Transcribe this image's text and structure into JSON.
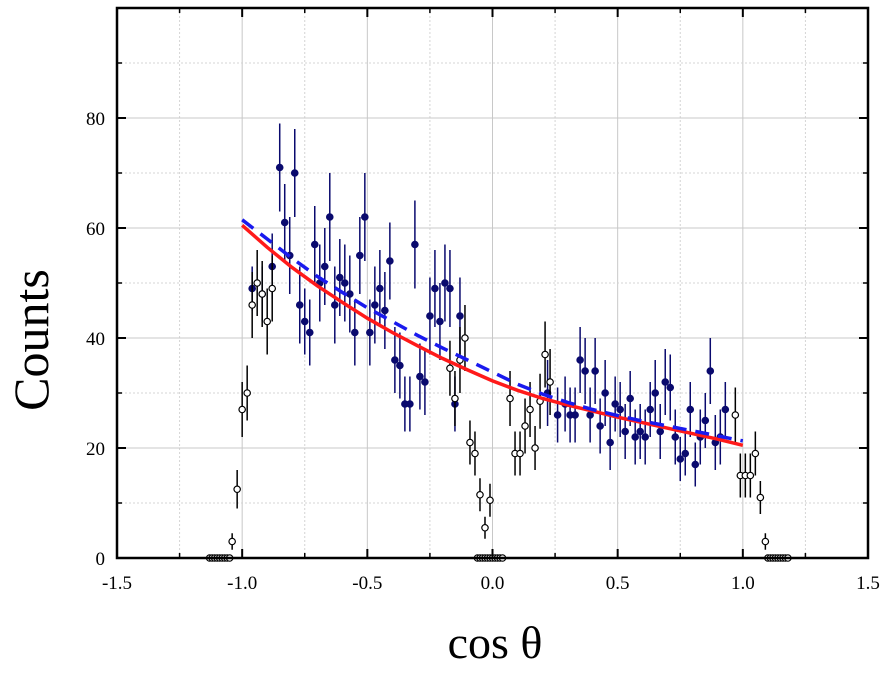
{
  "chart_data": {
    "type": "scatter",
    "title": "",
    "xlabel": "cos θ",
    "ylabel": "Counts",
    "xlim": [
      -1.5,
      1.5
    ],
    "ylim": [
      0,
      80
    ],
    "x_ticks": [
      "-1.5",
      "-1.0",
      "-0.5",
      "0.0",
      "0.5",
      "1.0",
      "1.5"
    ],
    "y_ticks": [
      "0",
      "20",
      "40",
      "60",
      "80"
    ],
    "grid": true,
    "legend": "none",
    "colors": {
      "filled_points": "#0a0a6e",
      "open_points": "#000000",
      "fit_solid": "#ff1a1a",
      "fit_dashed": "#1a1aee"
    },
    "series": [
      {
        "marker": "filled-circle",
        "points": [
          [
            -0.96,
            49,
            4
          ],
          [
            -0.92,
            48,
            5
          ],
          [
            -0.88,
            53,
            6
          ],
          [
            -0.85,
            71,
            8
          ],
          [
            -0.83,
            61,
            7
          ],
          [
            -0.81,
            55,
            7
          ],
          [
            -0.79,
            70,
            8
          ],
          [
            -0.77,
            46,
            7
          ],
          [
            -0.75,
            43,
            6
          ],
          [
            -0.73,
            41,
            6
          ],
          [
            -0.71,
            57,
            7
          ],
          [
            -0.69,
            50,
            7
          ],
          [
            -0.67,
            53,
            7
          ],
          [
            -0.65,
            62,
            8
          ],
          [
            -0.63,
            46,
            7
          ],
          [
            -0.61,
            51,
            7
          ],
          [
            -0.59,
            50,
            7
          ],
          [
            -0.57,
            48,
            7
          ],
          [
            -0.55,
            41,
            6
          ],
          [
            -0.53,
            55,
            7
          ],
          [
            -0.51,
            62,
            8
          ],
          [
            -0.49,
            41,
            6
          ],
          [
            -0.47,
            46,
            7
          ],
          [
            -0.45,
            49,
            7
          ],
          [
            -0.43,
            45,
            7
          ],
          [
            -0.41,
            54,
            7
          ],
          [
            -0.39,
            36,
            6
          ],
          [
            -0.37,
            35,
            6
          ],
          [
            -0.35,
            28,
            5
          ],
          [
            -0.33,
            28,
            5
          ],
          [
            -0.31,
            57,
            8
          ],
          [
            -0.29,
            33,
            6
          ],
          [
            -0.27,
            32,
            6
          ],
          [
            -0.25,
            44,
            7
          ],
          [
            -0.23,
            49,
            7
          ],
          [
            -0.21,
            43,
            7
          ],
          [
            -0.19,
            50,
            7
          ],
          [
            -0.17,
            49,
            7
          ],
          [
            -0.15,
            28,
            5
          ],
          [
            -0.13,
            44,
            7
          ],
          [
            0.22,
            30,
            6
          ],
          [
            0.26,
            26,
            5
          ],
          [
            0.29,
            28,
            5
          ],
          [
            0.31,
            26,
            5
          ],
          [
            0.33,
            26,
            5
          ],
          [
            0.35,
            36,
            6
          ],
          [
            0.37,
            34,
            6
          ],
          [
            0.39,
            26,
            5
          ],
          [
            0.41,
            34,
            6
          ],
          [
            0.43,
            24,
            5
          ],
          [
            0.45,
            30,
            6
          ],
          [
            0.47,
            21,
            5
          ],
          [
            0.49,
            28,
            5
          ],
          [
            0.51,
            27,
            5
          ],
          [
            0.53,
            23,
            5
          ],
          [
            0.55,
            29,
            5
          ],
          [
            0.57,
            22,
            5
          ],
          [
            0.59,
            23,
            5
          ],
          [
            0.61,
            22,
            5
          ],
          [
            0.63,
            27,
            5
          ],
          [
            0.65,
            30,
            6
          ],
          [
            0.67,
            23,
            5
          ],
          [
            0.69,
            32,
            6
          ],
          [
            0.71,
            31,
            6
          ],
          [
            0.73,
            22,
            5
          ],
          [
            0.75,
            18,
            4
          ],
          [
            0.77,
            19,
            4
          ],
          [
            0.79,
            27,
            5
          ],
          [
            0.81,
            17,
            4
          ],
          [
            0.83,
            22,
            5
          ],
          [
            0.85,
            25,
            5
          ],
          [
            0.87,
            34,
            6
          ],
          [
            0.89,
            21,
            5
          ],
          [
            0.91,
            22,
            5
          ],
          [
            0.93,
            27,
            5
          ]
        ]
      },
      {
        "marker": "open-circle",
        "points": [
          [
            -1.13,
            0,
            0
          ],
          [
            -1.12,
            0,
            0
          ],
          [
            -1.11,
            0,
            0
          ],
          [
            -1.1,
            0,
            0
          ],
          [
            -1.09,
            0,
            0
          ],
          [
            -1.08,
            0,
            0
          ],
          [
            -1.07,
            0,
            0
          ],
          [
            -1.06,
            0,
            0
          ],
          [
            -1.05,
            0,
            0
          ],
          [
            -1.04,
            3,
            1.5
          ],
          [
            -1.02,
            12.5,
            3.5
          ],
          [
            -1.0,
            27,
            5
          ],
          [
            -0.98,
            30,
            5
          ],
          [
            -0.96,
            46,
            6
          ],
          [
            -0.94,
            50,
            6
          ],
          [
            -0.92,
            48,
            6
          ],
          [
            -0.9,
            43,
            6
          ],
          [
            -0.88,
            49,
            6
          ],
          [
            -0.17,
            34.5,
            5
          ],
          [
            -0.15,
            29,
            5
          ],
          [
            -0.13,
            36,
            6
          ],
          [
            -0.11,
            40,
            6
          ],
          [
            -0.09,
            21,
            4
          ],
          [
            -0.07,
            19,
            4
          ],
          [
            -0.05,
            11.5,
            3
          ],
          [
            -0.03,
            5.5,
            2
          ],
          [
            -0.01,
            10.5,
            3
          ],
          [
            -0.06,
            0,
            0
          ],
          [
            -0.05,
            0,
            0
          ],
          [
            -0.04,
            0,
            0
          ],
          [
            -0.03,
            0,
            0
          ],
          [
            -0.02,
            0,
            0
          ],
          [
            -0.01,
            0,
            0
          ],
          [
            0.0,
            0,
            0
          ],
          [
            0.01,
            0,
            0
          ],
          [
            0.02,
            0,
            0
          ],
          [
            0.03,
            0,
            0
          ],
          [
            0.04,
            0,
            0
          ],
          [
            0.07,
            29,
            5
          ],
          [
            0.09,
            19,
            4
          ],
          [
            0.11,
            19,
            4
          ],
          [
            0.13,
            24,
            5
          ],
          [
            0.15,
            27,
            5
          ],
          [
            0.17,
            20,
            4
          ],
          [
            0.19,
            28.5,
            5
          ],
          [
            0.21,
            37,
            6
          ],
          [
            0.23,
            32,
            6
          ],
          [
            0.97,
            26,
            5
          ],
          [
            0.99,
            15,
            4
          ],
          [
            1.01,
            15,
            4
          ],
          [
            1.03,
            15,
            4
          ],
          [
            1.05,
            19,
            4
          ],
          [
            1.07,
            11,
            3
          ],
          [
            1.09,
            3,
            1.5
          ],
          [
            1.1,
            0,
            0
          ],
          [
            1.11,
            0,
            0
          ],
          [
            1.12,
            0,
            0
          ],
          [
            1.13,
            0,
            0
          ],
          [
            1.14,
            0,
            0
          ],
          [
            1.15,
            0,
            0
          ],
          [
            1.16,
            0,
            0
          ],
          [
            1.17,
            0,
            0
          ],
          [
            1.18,
            0,
            0
          ]
        ]
      }
    ],
    "curves": [
      {
        "style": "solid",
        "x": [
          -1.0,
          -0.9,
          -0.8,
          -0.7,
          -0.6,
          -0.5,
          -0.4,
          -0.3,
          -0.2,
          -0.1,
          0.0,
          0.1,
          0.2,
          0.3,
          0.4,
          0.5,
          0.6,
          0.7,
          0.8,
          0.9,
          1.0
        ],
        "y": [
          60.5,
          56.5,
          52.8,
          49.5,
          46.5,
          43.6,
          41.0,
          38.6,
          36.3,
          34.2,
          32.2,
          30.5,
          29.0,
          27.8,
          26.7,
          25.6,
          24.6,
          23.6,
          22.6,
          21.6,
          20.5
        ]
      },
      {
        "style": "dashed",
        "x": [
          -1.0,
          -0.9,
          -0.8,
          -0.7,
          -0.6,
          -0.5,
          -0.4,
          -0.3,
          -0.2,
          -0.1,
          0.0,
          0.1,
          0.2,
          0.3,
          0.4,
          0.5,
          0.6,
          0.7,
          0.8,
          0.9,
          1.0
        ],
        "y": [
          61.5,
          58.0,
          54.5,
          51.2,
          48.3,
          45.5,
          43.0,
          40.5,
          38.2,
          36.0,
          33.8,
          31.6,
          29.8,
          28.3,
          27.0,
          25.9,
          24.9,
          24.0,
          23.1,
          22.2,
          21.3
        ]
      }
    ]
  }
}
